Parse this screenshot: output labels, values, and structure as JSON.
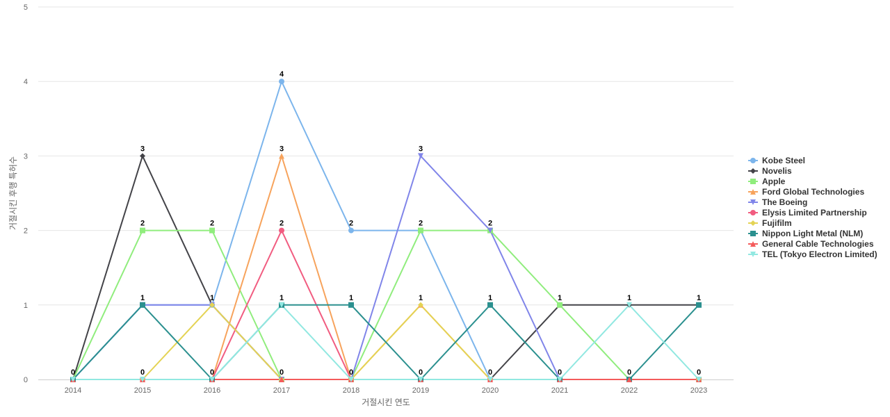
{
  "chart_data": {
    "type": "line",
    "title": "",
    "xlabel": "거절시킨 연도",
    "ylabel": "거절시킨 후행 특허수",
    "x": [
      "2014",
      "2015",
      "2016",
      "2017",
      "2018",
      "2019",
      "2020",
      "2021",
      "2022",
      "2023"
    ],
    "ylim": [
      0,
      5
    ],
    "yticks": [
      0,
      1,
      2,
      3,
      4,
      5
    ],
    "grid": true,
    "legend_position": "right",
    "data_labels": true,
    "series": [
      {
        "name": "Kobe Steel",
        "color": "#7cb5ec",
        "marker": "circle",
        "values": [
          0,
          1,
          1,
          4,
          2,
          2,
          0,
          0,
          0,
          0
        ]
      },
      {
        "name": "Novelis",
        "color": "#434348",
        "marker": "diamond",
        "values": [
          0,
          3,
          1,
          0,
          0,
          0,
          0,
          1,
          1,
          1
        ]
      },
      {
        "name": "Apple",
        "color": "#90ed7d",
        "marker": "square",
        "values": [
          0,
          2,
          2,
          0,
          0,
          2,
          2,
          1,
          0,
          0
        ]
      },
      {
        "name": "Ford Global Technologies",
        "color": "#f7a35c",
        "marker": "triangle",
        "values": [
          0,
          0,
          0,
          3,
          0,
          1,
          0,
          0,
          0,
          0
        ]
      },
      {
        "name": "The Boeing",
        "color": "#8085e9",
        "marker": "triangle-down",
        "values": [
          0,
          1,
          1,
          0,
          0,
          3,
          2,
          0,
          0,
          0
        ]
      },
      {
        "name": "Elysis Limited Partnership",
        "color": "#f15c80",
        "marker": "circle",
        "values": [
          0,
          0,
          0,
          2,
          0,
          0,
          0,
          0,
          0,
          0
        ]
      },
      {
        "name": "Fujifilm",
        "color": "#e4d354",
        "marker": "diamond",
        "values": [
          0,
          0,
          1,
          0,
          0,
          1,
          0,
          0,
          0,
          0
        ]
      },
      {
        "name": "Nippon Light Metal (NLM)",
        "color": "#2b908f",
        "marker": "square",
        "values": [
          0,
          1,
          0,
          1,
          1,
          0,
          1,
          0,
          0,
          1
        ]
      },
      {
        "name": "General Cable Technologies",
        "color": "#f45b5b",
        "marker": "triangle",
        "values": [
          0,
          0,
          0,
          0,
          0,
          0,
          0,
          0,
          0,
          0
        ]
      },
      {
        "name": "TEL (Tokyo Electron Limited)",
        "color": "#91e8e1",
        "marker": "triangle-down",
        "values": [
          0,
          0,
          0,
          1,
          0,
          0,
          0,
          0,
          1,
          0
        ]
      }
    ],
    "data_labels_shown": [
      {
        "x": "2014",
        "value": 0
      },
      {
        "x": "2015",
        "value": 3
      },
      {
        "x": "2015",
        "value": 2
      },
      {
        "x": "2015",
        "value": 1
      },
      {
        "x": "2015",
        "value": 0
      },
      {
        "x": "2016",
        "value": 2
      },
      {
        "x": "2016",
        "value": 1
      },
      {
        "x": "2016",
        "value": 0
      },
      {
        "x": "2017",
        "value": 4
      },
      {
        "x": "2017",
        "value": 3
      },
      {
        "x": "2017",
        "value": 2
      },
      {
        "x": "2017",
        "value": 1
      },
      {
        "x": "2017",
        "value": 0
      },
      {
        "x": "2018",
        "value": 2
      },
      {
        "x": "2018",
        "value": 1
      },
      {
        "x": "2018",
        "value": 0
      },
      {
        "x": "2019",
        "value": 3
      },
      {
        "x": "2019",
        "value": 2
      },
      {
        "x": "2019",
        "value": 1
      },
      {
        "x": "2019",
        "value": 0
      },
      {
        "x": "2020",
        "value": 2
      },
      {
        "x": "2020",
        "value": 1
      },
      {
        "x": "2020",
        "value": 0
      },
      {
        "x": "2021",
        "value": 1
      },
      {
        "x": "2021",
        "value": 0
      },
      {
        "x": "2022",
        "value": 1
      },
      {
        "x": "2022",
        "value": 0
      },
      {
        "x": "2023",
        "value": 1
      },
      {
        "x": "2023",
        "value": 0
      }
    ]
  }
}
